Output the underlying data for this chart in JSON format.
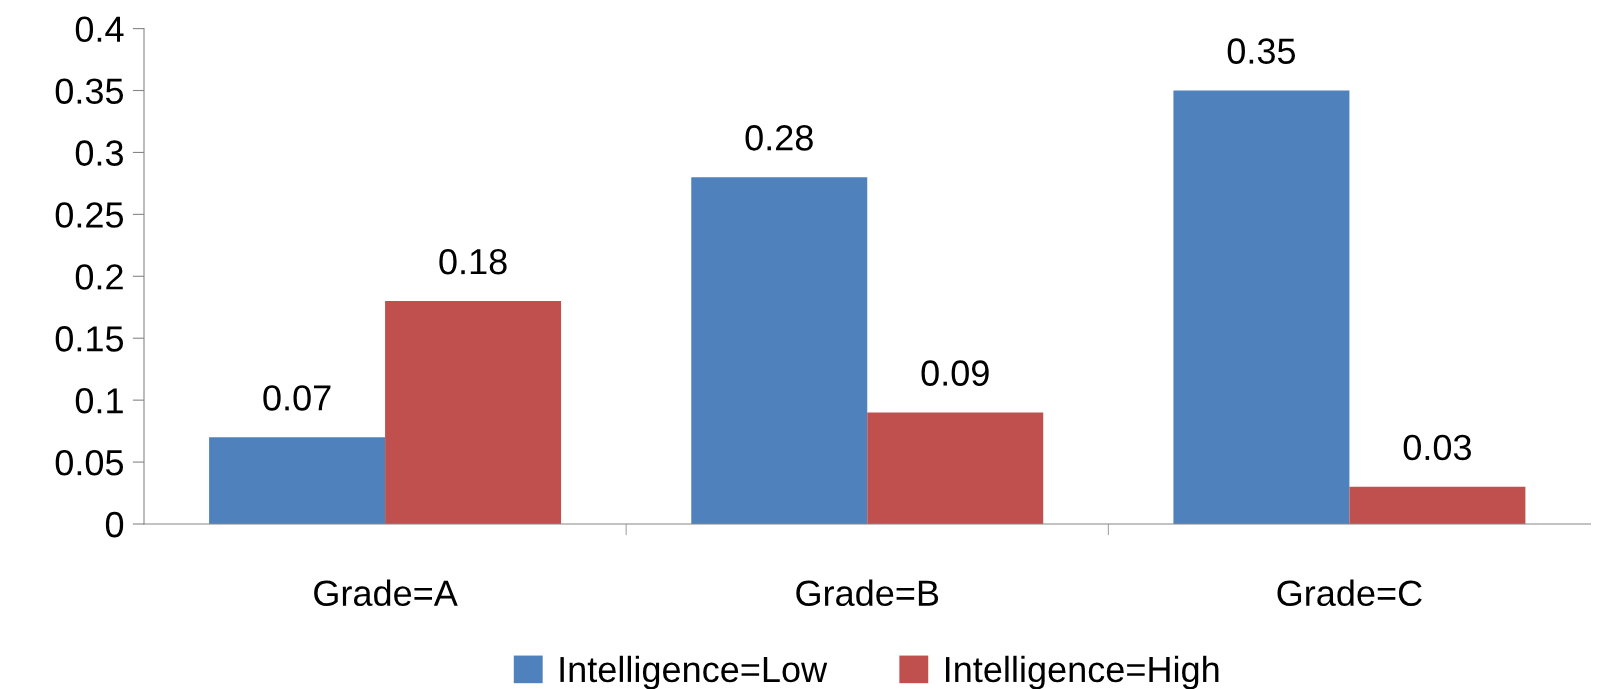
{
  "chart_data": {
    "type": "bar",
    "categories": [
      "Grade=A",
      "Grade=B",
      "Grade=C"
    ],
    "series": [
      {
        "name": "Intelligence=Low",
        "color": "#4f81bd",
        "values": [
          0.07,
          0.28,
          0.35
        ]
      },
      {
        "name": "Intelligence=High",
        "color": "#c0504d",
        "values": [
          0.18,
          0.09,
          0.03
        ]
      }
    ],
    "ylim": [
      0,
      0.4
    ],
    "yticks": [
      0,
      {
        "value": 0.05,
        "label": "0.05"
      },
      {
        "value": 0.1,
        "label": "0.1"
      },
      {
        "value": 0.15,
        "label": "0.15"
      },
      {
        "value": 0.2,
        "label": "0.2"
      },
      {
        "value": 0.25,
        "label": "0.25"
      },
      {
        "value": 0.3,
        "label": "0.3"
      },
      {
        "value": 0.35,
        "label": "0.35"
      },
      {
        "value": 0.4,
        "label": "0.4"
      }
    ],
    "data_labels": true,
    "grid": false,
    "legend": "bottom"
  }
}
